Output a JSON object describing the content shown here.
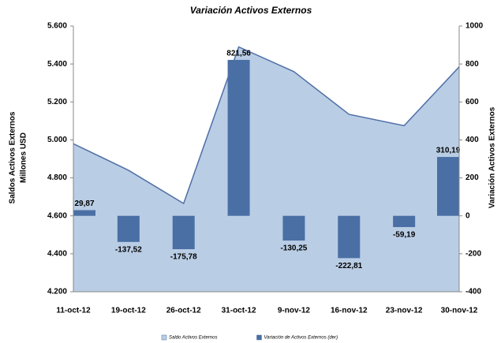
{
  "chart_data": {
    "type": "combo",
    "title": "Variación Activos Externos",
    "ylabel": [
      "Saldos Activos Externos",
      "Millones USD"
    ],
    "y2label": "Variación Activos Externos",
    "categories": [
      "11-oct-12",
      "19-oct-12",
      "26-oct-12",
      "31-oct-12",
      "9-nov-12",
      "16-nov-12",
      "23-nov-12",
      "30-nov-12"
    ],
    "series": [
      {
        "name": "Saldo Activos Externos",
        "type": "area",
        "color": "#b9cde5",
        "values": [
          4980,
          4840,
          4665,
          5490,
          5360,
          5135,
          5075,
          5385
        ]
      },
      {
        "name": "Variación de Activos Externos (der)",
        "type": "bar",
        "axis": "y2",
        "color": "#4a6fa5",
        "values": [
          29.87,
          -137.52,
          -175.78,
          821.56,
          -130.25,
          -222.81,
          -59.19,
          310.19
        ],
        "value_labels": [
          "29,87",
          "-137,52",
          "-175,78",
          "821,56",
          "-130,25",
          "-222,81",
          "-59,19",
          "310,19"
        ]
      }
    ],
    "ylim": [
      4200,
      5600
    ],
    "yticks": [
      {
        "value": 4200,
        "label": "4.200"
      },
      {
        "value": 4400,
        "label": "4.400"
      },
      {
        "value": 4600,
        "label": "4.600"
      },
      {
        "value": 4800,
        "label": "4.800"
      },
      {
        "value": 5000,
        "label": "5.000"
      },
      {
        "value": 5200,
        "label": "5.200"
      },
      {
        "value": 5400,
        "label": "5.400"
      },
      {
        "value": 5600,
        "label": "5.600"
      }
    ],
    "y2lim": [
      -400,
      1000
    ],
    "y2ticks": [
      -400,
      -200,
      0,
      200,
      400,
      600,
      800,
      1000
    ],
    "grid": false,
    "legend": "bottom"
  }
}
